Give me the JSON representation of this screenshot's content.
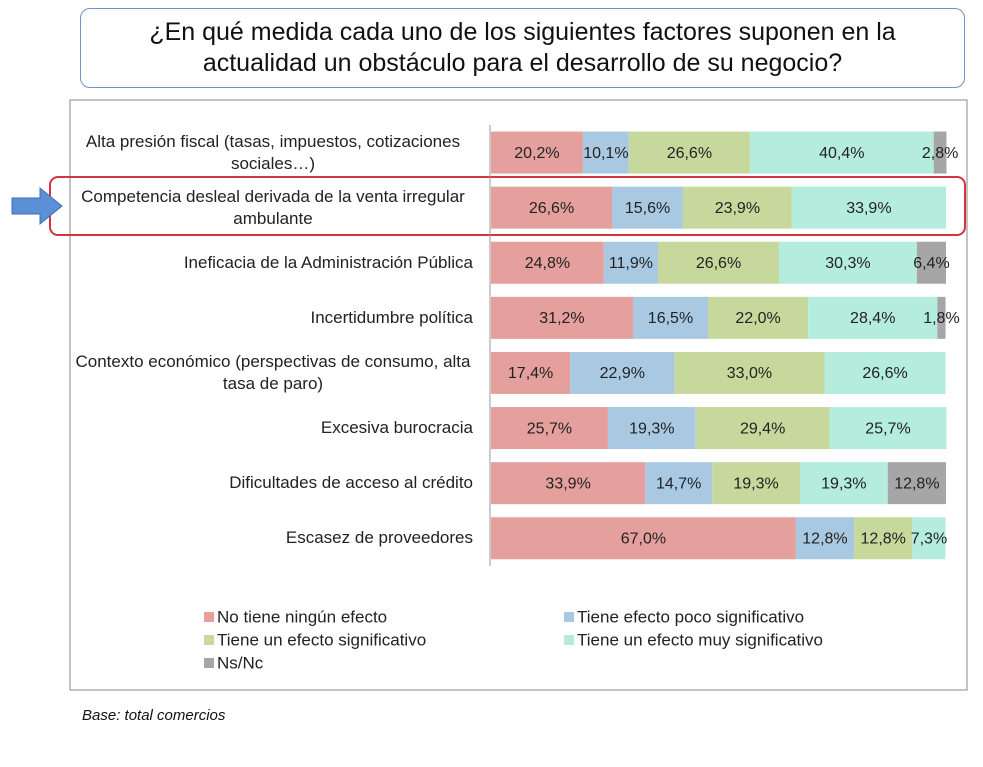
{
  "chart_data": {
    "type": "stacked-bar-horizontal",
    "title": "¿En qué medida cada uno de los siguientes factores suponen en la actualidad un obstáculo para el desarrollo de su negocio?",
    "footnote": "Base: total comercios",
    "categories": [
      "Alta presión fiscal (tasas, impuestos, cotizaciones sociales…)",
      "Competencia desleal derivada de la venta irregular ambulante",
      "Ineficacia de la Administración Pública",
      "Incertidumbre política",
      "Contexto económico (perspectivas de consumo, alta tasa de paro)",
      "Excesiva burocracia",
      "Dificultades de acceso al crédito",
      "Escasez de proveedores"
    ],
    "series": [
      {
        "name": "No tiene ningún efecto",
        "color": "#e5a09e",
        "values": [
          20.2,
          26.6,
          24.8,
          31.2,
          17.4,
          25.7,
          33.9,
          67.0
        ],
        "value_labels": [
          "20,2%",
          "26,6%",
          "24,8%",
          "31,2%",
          "17,4%",
          "25,7%",
          "33,9%",
          "67,0%"
        ]
      },
      {
        "name": "Tiene efecto  poco significativo",
        "color": "#a9c9e2",
        "values": [
          10.1,
          15.6,
          11.9,
          16.5,
          22.9,
          19.3,
          14.7,
          12.8
        ],
        "value_labels": [
          "10,1%",
          "15,6%",
          "11,9%",
          "16,5%",
          "22,9%",
          "19,3%",
          "14,7%",
          "12,8%"
        ]
      },
      {
        "name": "Tiene un efecto  significativo",
        "color": "#c6d89b",
        "values": [
          26.6,
          23.9,
          26.6,
          22.0,
          33.0,
          29.4,
          19.3,
          12.8
        ],
        "value_labels": [
          "26,6%",
          "23,9%",
          "26,6%",
          "22,0%",
          "33,0%",
          "29,4%",
          "19,3%",
          "12,8%"
        ]
      },
      {
        "name": "Tiene un efecto  muy significativo",
        "color": "#b4ecdd",
        "values": [
          40.4,
          33.9,
          30.3,
          28.4,
          26.6,
          25.7,
          19.3,
          7.3
        ],
        "value_labels": [
          "40,4%",
          "33,9%",
          "30,3%",
          "28,4%",
          "26,6%",
          "25,7%",
          "19,3%",
          "7,3%"
        ]
      },
      {
        "name": "Ns/Nc",
        "color": "#a6a6a6",
        "values": [
          2.8,
          null,
          6.4,
          1.8,
          null,
          null,
          12.8,
          null
        ],
        "value_labels": [
          "2,8%",
          null,
          "6,4%",
          "1,8%",
          null,
          null,
          "12,8%",
          null
        ]
      }
    ]
  }
}
